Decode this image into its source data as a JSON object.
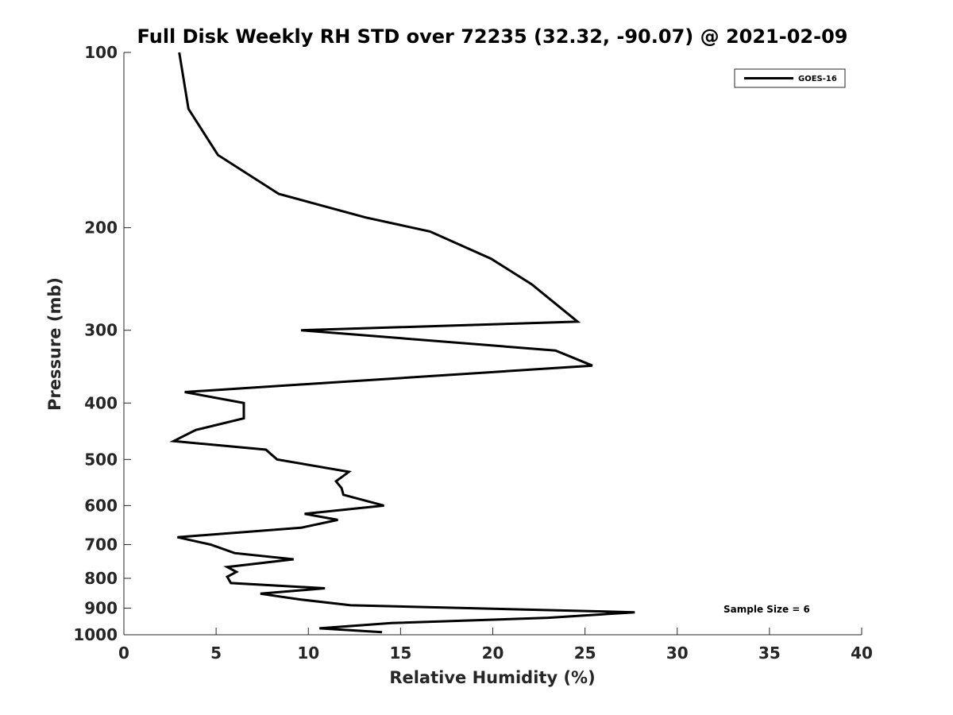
{
  "chart_data": {
    "type": "line",
    "title": "Full Disk Weekly RH STD over 72235 (32.32, -90.07) @ 2021-02-09",
    "xlabel": "Relative Humidity (%)",
    "ylabel": "Pressure (mb)",
    "xlim": [
      0,
      40
    ],
    "ylim": [
      100,
      1000
    ],
    "yscale": "log",
    "y_reversed": true,
    "grid": false,
    "xticks": [
      0,
      5,
      10,
      15,
      20,
      25,
      30,
      35,
      40
    ],
    "yticks": [
      100,
      200,
      300,
      400,
      500,
      600,
      700,
      800,
      900,
      1000
    ],
    "legend": {
      "position": "top-right",
      "entries": [
        "GOES-16"
      ]
    },
    "annotation": "Sample Size = 6",
    "series": [
      {
        "name": "GOES-16",
        "color": "#000000",
        "points": [
          [
            3.0,
            100
          ],
          [
            3.5,
            125
          ],
          [
            5.1,
            150
          ],
          [
            8.4,
            175
          ],
          [
            13.1,
            192
          ],
          [
            16.6,
            203
          ],
          [
            19.9,
            226
          ],
          [
            22.1,
            250
          ],
          [
            24.6,
            290
          ],
          [
            9.6,
            300
          ],
          [
            23.4,
            325
          ],
          [
            25.4,
            345
          ],
          [
            3.3,
            383
          ],
          [
            6.5,
            400
          ],
          [
            6.5,
            425
          ],
          [
            3.9,
            445
          ],
          [
            2.7,
            465
          ],
          [
            7.7,
            481
          ],
          [
            8.3,
            500
          ],
          [
            12.2,
            525
          ],
          [
            11.5,
            545
          ],
          [
            11.8,
            560
          ],
          [
            11.9,
            575
          ],
          [
            14.1,
            600
          ],
          [
            9.8,
            620
          ],
          [
            11.6,
            635
          ],
          [
            9.6,
            655
          ],
          [
            2.9,
            680
          ],
          [
            4.7,
            700
          ],
          [
            6.0,
            724
          ],
          [
            9.2,
            742
          ],
          [
            5.6,
            765
          ],
          [
            6.1,
            780
          ],
          [
            5.6,
            795
          ],
          [
            5.8,
            815
          ],
          [
            10.9,
            832
          ],
          [
            7.4,
            850
          ],
          [
            9.6,
            870
          ],
          [
            12.3,
            890
          ],
          [
            27.7,
            915
          ],
          [
            23.0,
            935
          ],
          [
            14.5,
            955
          ],
          [
            10.6,
            975
          ],
          [
            14.0,
            990
          ]
        ]
      }
    ]
  }
}
